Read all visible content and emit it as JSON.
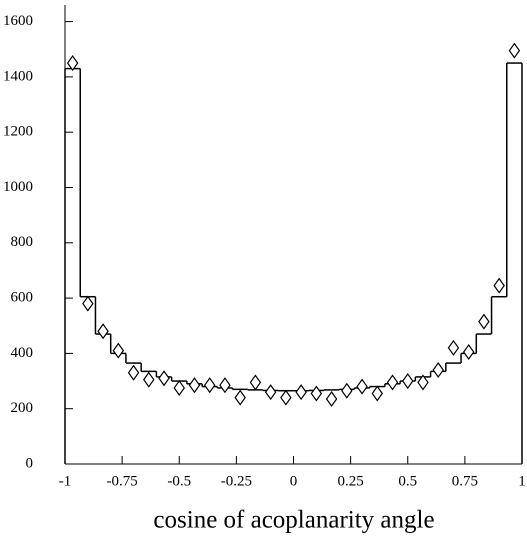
{
  "chart_data": {
    "type": "histogram",
    "xlabel": "cosine of acoplanarity angle",
    "bins": [
      -1,
      -0.9333,
      -0.8667,
      -0.8,
      -0.7333,
      -0.6667,
      -0.6,
      -0.5333,
      -0.4667,
      -0.4,
      -0.3333,
      -0.2667,
      -0.2,
      -0.1333,
      -0.0667,
      0,
      0.0667,
      0.1333,
      0.2,
      0.2667,
      0.3333,
      0.4,
      0.4667,
      0.5333,
      0.6,
      0.6667,
      0.7333,
      0.8,
      0.8667,
      0.9333,
      1
    ],
    "counts": [
      1430,
      605,
      470,
      400,
      365,
      335,
      315,
      300,
      290,
      280,
      275,
      270,
      268,
      266,
      265,
      265,
      266,
      268,
      270,
      275,
      280,
      290,
      300,
      315,
      335,
      365,
      400,
      470,
      605,
      1450
    ],
    "points": [
      1450,
      580,
      480,
      410,
      330,
      305,
      310,
      275,
      285,
      285,
      285,
      240,
      295,
      260,
      240,
      260,
      255,
      235,
      265,
      280,
      255,
      295,
      300,
      295,
      340,
      420,
      405,
      515,
      645,
      1495
    ],
    "color": "#000000",
    "xlim": [
      -1,
      1
    ],
    "ylim": [
      0,
      1660
    ],
    "xticks": [
      -1,
      -0.75,
      -0.5,
      -0.25,
      0,
      0.25,
      0.5,
      0.75,
      1
    ],
    "yticks": [
      0,
      200,
      400,
      600,
      800,
      1000,
      1200,
      1400,
      1600
    ]
  }
}
